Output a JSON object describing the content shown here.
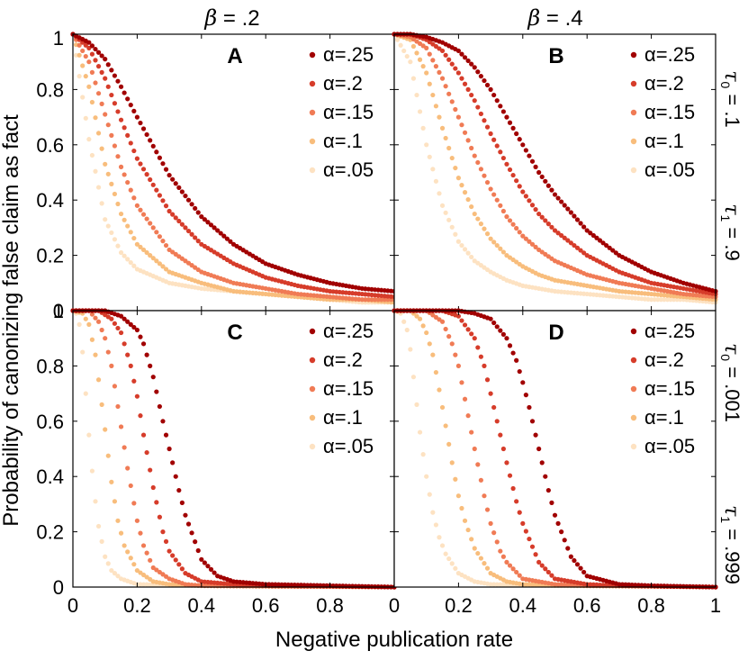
{
  "figure": {
    "ylabel": "Probability of canonizing false claim as fact",
    "xlabel": "Negative publication rate",
    "column_headers": [
      {
        "symbol": "β",
        "text": " = .2"
      },
      {
        "symbol": "β",
        "text": " = .4"
      }
    ],
    "row_labels": [
      {
        "t0_symbol": "τ",
        "t0_sub": "0",
        "t0_text": " = .1",
        "t1_symbol": "τ",
        "t1_sub": "1",
        "t1_text": " = .9"
      },
      {
        "t0_symbol": "τ",
        "t0_sub": "0",
        "t0_text": " = .001",
        "t1_symbol": "τ",
        "t1_sub": "1",
        "t1_text": " = .999"
      }
    ]
  },
  "chart_data": [
    {
      "panel": "A",
      "type": "scatter",
      "beta": 0.2,
      "tau0": 0.1,
      "tau1": 0.9,
      "xlim": [
        0,
        1
      ],
      "ylim": [
        0,
        1
      ],
      "xticks": [
        "0",
        "0.2",
        "0.4",
        "0.6",
        "0.8",
        "1"
      ],
      "yticks": [
        "0",
        "0.2",
        "0.4",
        "0.6",
        "0.8",
        "1"
      ],
      "series": [
        {
          "name": "α=.25",
          "alpha": 0.25,
          "color": "#a10000",
          "x": [
            0,
            0.05,
            0.1,
            0.15,
            0.2,
            0.3,
            0.4,
            0.5,
            0.6,
            0.7,
            0.8,
            0.9,
            1
          ],
          "y": [
            1,
            0.97,
            0.91,
            0.81,
            0.7,
            0.49,
            0.34,
            0.24,
            0.17,
            0.13,
            0.1,
            0.08,
            0.07
          ]
        },
        {
          "name": "α=.2",
          "alpha": 0.2,
          "color": "#d63c2a",
          "x": [
            0,
            0.05,
            0.1,
            0.15,
            0.2,
            0.3,
            0.4,
            0.5,
            0.6,
            0.7,
            0.8,
            0.9,
            1
          ],
          "y": [
            1,
            0.95,
            0.84,
            0.69,
            0.55,
            0.36,
            0.24,
            0.17,
            0.12,
            0.09,
            0.07,
            0.06,
            0.05
          ]
        },
        {
          "name": "α=.15",
          "alpha": 0.15,
          "color": "#f07b55",
          "x": [
            0,
            0.05,
            0.1,
            0.15,
            0.2,
            0.3,
            0.4,
            0.5,
            0.6,
            0.7,
            0.8,
            0.9,
            1
          ],
          "y": [
            1,
            0.9,
            0.71,
            0.52,
            0.38,
            0.22,
            0.14,
            0.1,
            0.08,
            0.06,
            0.05,
            0.04,
            0.04
          ]
        },
        {
          "name": "α=.1",
          "alpha": 0.1,
          "color": "#f8bd7c",
          "x": [
            0,
            0.05,
            0.1,
            0.15,
            0.2,
            0.3,
            0.4,
            0.5,
            0.6,
            0.7,
            0.8,
            0.9,
            1
          ],
          "y": [
            1,
            0.81,
            0.53,
            0.35,
            0.24,
            0.14,
            0.1,
            0.07,
            0.06,
            0.05,
            0.04,
            0.04,
            0.03
          ]
        },
        {
          "name": "α=.05",
          "alpha": 0.05,
          "color": "#fde2c2",
          "x": [
            0,
            0.05,
            0.1,
            0.15,
            0.2,
            0.3,
            0.4,
            0.5,
            0.6,
            0.7,
            0.8,
            0.9,
            1
          ],
          "y": [
            1,
            0.62,
            0.33,
            0.21,
            0.15,
            0.1,
            0.08,
            0.07,
            0.06,
            0.05,
            0.04,
            0.03,
            0.03
          ]
        }
      ]
    },
    {
      "panel": "B",
      "type": "scatter",
      "beta": 0.4,
      "tau0": 0.1,
      "tau1": 0.9,
      "xlim": [
        0,
        1
      ],
      "ylim": [
        0,
        1
      ],
      "xticks": [
        "0",
        "0.2",
        "0.4",
        "0.6",
        "0.8",
        "1"
      ],
      "yticks": [
        "0",
        "0.2",
        "0.4",
        "0.6",
        "0.8",
        "1"
      ],
      "series": [
        {
          "name": "α=.25",
          "alpha": 0.25,
          "color": "#a10000",
          "x": [
            0,
            0.05,
            0.1,
            0.15,
            0.2,
            0.25,
            0.3,
            0.35,
            0.4,
            0.45,
            0.5,
            0.6,
            0.7,
            0.8,
            0.9,
            1
          ],
          "y": [
            1,
            1,
            0.99,
            0.97,
            0.94,
            0.88,
            0.8,
            0.7,
            0.6,
            0.5,
            0.42,
            0.29,
            0.2,
            0.14,
            0.1,
            0.07
          ]
        },
        {
          "name": "α=.2",
          "alpha": 0.2,
          "color": "#d63c2a",
          "x": [
            0,
            0.05,
            0.1,
            0.15,
            0.2,
            0.25,
            0.3,
            0.35,
            0.4,
            0.45,
            0.5,
            0.6,
            0.7,
            0.8,
            0.9,
            1
          ],
          "y": [
            1,
            1,
            0.98,
            0.94,
            0.86,
            0.76,
            0.64,
            0.53,
            0.43,
            0.35,
            0.29,
            0.2,
            0.14,
            0.1,
            0.08,
            0.06
          ]
        },
        {
          "name": "α=.15",
          "alpha": 0.15,
          "color": "#f07b55",
          "x": [
            0,
            0.05,
            0.1,
            0.15,
            0.2,
            0.25,
            0.3,
            0.35,
            0.4,
            0.45,
            0.5,
            0.6,
            0.7,
            0.8,
            0.9,
            1
          ],
          "y": [
            1,
            0.99,
            0.95,
            0.84,
            0.7,
            0.56,
            0.44,
            0.34,
            0.27,
            0.22,
            0.18,
            0.13,
            0.1,
            0.08,
            0.06,
            0.05
          ]
        },
        {
          "name": "α=.1",
          "alpha": 0.1,
          "color": "#f8bd7c",
          "x": [
            0,
            0.05,
            0.1,
            0.15,
            0.2,
            0.25,
            0.3,
            0.35,
            0.4,
            0.45,
            0.5,
            0.6,
            0.7,
            0.8,
            0.9,
            1
          ],
          "y": [
            1,
            0.98,
            0.86,
            0.66,
            0.48,
            0.35,
            0.26,
            0.2,
            0.16,
            0.13,
            0.11,
            0.09,
            0.07,
            0.06,
            0.05,
            0.04
          ]
        },
        {
          "name": "α=.05",
          "alpha": 0.05,
          "color": "#fde2c2",
          "x": [
            0,
            0.05,
            0.1,
            0.15,
            0.2,
            0.25,
            0.3,
            0.35,
            0.4,
            0.45,
            0.5,
            0.6,
            0.7,
            0.8,
            0.9,
            1
          ],
          "y": [
            1,
            0.9,
            0.6,
            0.38,
            0.25,
            0.18,
            0.14,
            0.11,
            0.09,
            0.08,
            0.07,
            0.06,
            0.05,
            0.04,
            0.04,
            0.03
          ]
        }
      ]
    },
    {
      "panel": "C",
      "type": "scatter",
      "beta": 0.2,
      "tau0": 0.001,
      "tau1": 0.999,
      "xlim": [
        0,
        1
      ],
      "ylim": [
        0,
        1
      ],
      "xticks": [
        "0",
        "0.2",
        "0.4",
        "0.6",
        "0.8",
        "1"
      ],
      "yticks": [
        "0",
        "0.2",
        "0.4",
        "0.6",
        "0.8",
        "1"
      ],
      "series": [
        {
          "name": "α=.25",
          "alpha": 0.25,
          "color": "#a10000",
          "x": [
            0,
            0.1,
            0.15,
            0.2,
            0.22,
            0.25,
            0.28,
            0.3,
            0.33,
            0.35,
            0.4,
            0.45,
            0.5,
            0.6,
            0.8,
            1
          ],
          "y": [
            1,
            1,
            0.98,
            0.93,
            0.88,
            0.76,
            0.6,
            0.5,
            0.35,
            0.26,
            0.1,
            0.04,
            0.02,
            0.01,
            0.005,
            0
          ]
        },
        {
          "name": "α=.2",
          "alpha": 0.2,
          "color": "#d63c2a",
          "x": [
            0,
            0.08,
            0.12,
            0.15,
            0.18,
            0.2,
            0.22,
            0.25,
            0.28,
            0.3,
            0.35,
            0.4,
            0.5,
            0.6,
            0.8,
            1
          ],
          "y": [
            1,
            1,
            0.97,
            0.92,
            0.8,
            0.69,
            0.55,
            0.36,
            0.2,
            0.13,
            0.05,
            0.02,
            0.01,
            0.005,
            0.003,
            0
          ]
        },
        {
          "name": "α=.15",
          "alpha": 0.15,
          "color": "#f07b55",
          "x": [
            0,
            0.05,
            0.08,
            0.1,
            0.12,
            0.15,
            0.17,
            0.2,
            0.22,
            0.25,
            0.3,
            0.35,
            0.4,
            0.6,
            0.8,
            1
          ],
          "y": [
            1,
            1,
            0.96,
            0.9,
            0.8,
            0.58,
            0.43,
            0.24,
            0.15,
            0.07,
            0.03,
            0.01,
            0.005,
            0.003,
            0.002,
            0
          ]
        },
        {
          "name": "α=.1",
          "alpha": 0.1,
          "color": "#f8bd7c",
          "x": [
            0,
            0.03,
            0.05,
            0.07,
            0.09,
            0.1,
            0.12,
            0.14,
            0.16,
            0.2,
            0.25,
            0.3,
            0.4,
            0.6,
            0.8,
            1
          ],
          "y": [
            1,
            0.99,
            0.95,
            0.84,
            0.66,
            0.57,
            0.38,
            0.24,
            0.15,
            0.06,
            0.02,
            0.01,
            0.005,
            0.003,
            0.002,
            0
          ]
        },
        {
          "name": "α=.05",
          "alpha": 0.05,
          "color": "#fde2c2",
          "x": [
            0,
            0.01,
            0.02,
            0.03,
            0.04,
            0.05,
            0.06,
            0.07,
            0.08,
            0.1,
            0.12,
            0.15,
            0.2,
            0.4,
            0.7,
            1
          ],
          "y": [
            1,
            0.99,
            0.95,
            0.85,
            0.7,
            0.55,
            0.42,
            0.31,
            0.22,
            0.11,
            0.06,
            0.03,
            0.01,
            0.005,
            0.002,
            0
          ]
        }
      ]
    },
    {
      "panel": "D",
      "type": "scatter",
      "beta": 0.4,
      "tau0": 0.001,
      "tau1": 0.999,
      "xlim": [
        0,
        1
      ],
      "ylim": [
        0,
        1
      ],
      "xticks": [
        "0",
        "0.2",
        "0.4",
        "0.6",
        "0.8",
        "1"
      ],
      "yticks": [
        "0",
        "0.2",
        "0.4",
        "0.6",
        "0.8",
        "1"
      ],
      "series": [
        {
          "name": "α=.25",
          "alpha": 0.25,
          "color": "#a10000",
          "x": [
            0,
            0.2,
            0.25,
            0.3,
            0.35,
            0.38,
            0.4,
            0.42,
            0.45,
            0.48,
            0.5,
            0.55,
            0.6,
            0.7,
            0.8,
            1
          ],
          "y": [
            1,
            1,
            0.99,
            0.97,
            0.9,
            0.82,
            0.74,
            0.65,
            0.5,
            0.35,
            0.26,
            0.11,
            0.04,
            0.01,
            0.005,
            0
          ]
        },
        {
          "name": "α=.2",
          "alpha": 0.2,
          "color": "#d63c2a",
          "x": [
            0,
            0.15,
            0.2,
            0.25,
            0.28,
            0.3,
            0.33,
            0.35,
            0.38,
            0.4,
            0.45,
            0.5,
            0.6,
            0.7,
            0.8,
            1
          ],
          "y": [
            1,
            1,
            0.98,
            0.9,
            0.8,
            0.7,
            0.55,
            0.45,
            0.31,
            0.23,
            0.09,
            0.03,
            0.01,
            0.005,
            0.003,
            0
          ]
        },
        {
          "name": "α=.15",
          "alpha": 0.15,
          "color": "#f07b55",
          "x": [
            0,
            0.1,
            0.15,
            0.18,
            0.2,
            0.22,
            0.25,
            0.28,
            0.3,
            0.33,
            0.35,
            0.4,
            0.5,
            0.6,
            0.8,
            1
          ],
          "y": [
            1,
            1,
            0.96,
            0.88,
            0.8,
            0.68,
            0.5,
            0.33,
            0.23,
            0.13,
            0.09,
            0.03,
            0.01,
            0.005,
            0.003,
            0
          ]
        },
        {
          "name": "α=.1",
          "alpha": 0.1,
          "color": "#f8bd7c",
          "x": [
            0,
            0.05,
            0.08,
            0.1,
            0.12,
            0.15,
            0.18,
            0.2,
            0.22,
            0.25,
            0.3,
            0.35,
            0.4,
            0.6,
            0.8,
            1
          ],
          "y": [
            1,
            1,
            0.97,
            0.92,
            0.84,
            0.65,
            0.45,
            0.33,
            0.24,
            0.14,
            0.05,
            0.02,
            0.01,
            0.005,
            0.003,
            0
          ]
        },
        {
          "name": "α=.05",
          "alpha": 0.05,
          "color": "#fde2c2",
          "x": [
            0,
            0.02,
            0.04,
            0.05,
            0.06,
            0.08,
            0.1,
            0.12,
            0.14,
            0.16,
            0.2,
            0.25,
            0.3,
            0.5,
            0.8,
            1
          ],
          "y": [
            1,
            0.99,
            0.93,
            0.86,
            0.76,
            0.56,
            0.4,
            0.27,
            0.18,
            0.12,
            0.05,
            0.02,
            0.01,
            0.005,
            0.002,
            0
          ]
        }
      ]
    }
  ]
}
